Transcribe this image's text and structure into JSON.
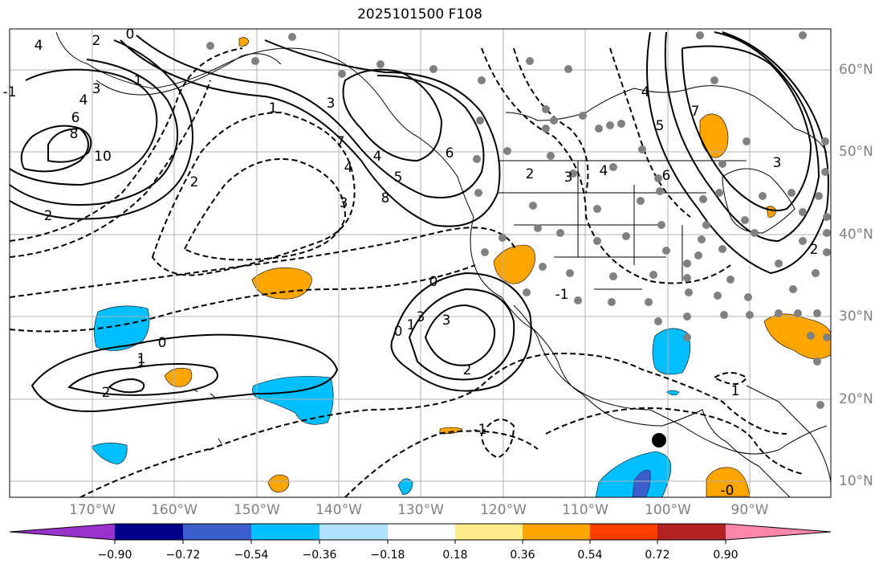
{
  "title": "2025101500 F108",
  "lat_labels": [
    "60°N",
    "50°N",
    "40°N",
    "30°N",
    "20°N",
    "10°N"
  ],
  "lon_labels": [
    "170°W",
    "160°W",
    "150°W",
    "140°W",
    "130°W",
    "120°W",
    "110°W",
    "100°W",
    "90°W"
  ],
  "colorbar": {
    "ticks": [
      "−0.90",
      "−0.72",
      "−0.54",
      "−0.36",
      "−0.18",
      "0.18",
      "0.36",
      "0.54",
      "0.72",
      "0.90"
    ],
    "colors": [
      "#9932CC",
      "#00008B",
      "#3A5FCD",
      "#00BFFF",
      "#B0E2FF",
      "#FFFFFF",
      "#FFEC8B",
      "#FFA500",
      "#FF3E00",
      "#B22222",
      "#FF88AA"
    ]
  },
  "contour_labels": [
    "4",
    "3",
    "6",
    "4",
    "8",
    "10",
    "2",
    "1",
    "3",
    "4",
    "5",
    "6",
    "7",
    "8",
    "2",
    "3",
    "4",
    "2",
    "3",
    "4",
    "5",
    "6",
    "7",
    "2",
    "3",
    "4",
    "0",
    "-1",
    "1",
    "0",
    "1",
    "2",
    "3",
    "0",
    "1",
    "2",
    "3",
    "0",
    "1",
    "2",
    "1",
    "-1",
    "-1",
    "-0"
  ]
}
